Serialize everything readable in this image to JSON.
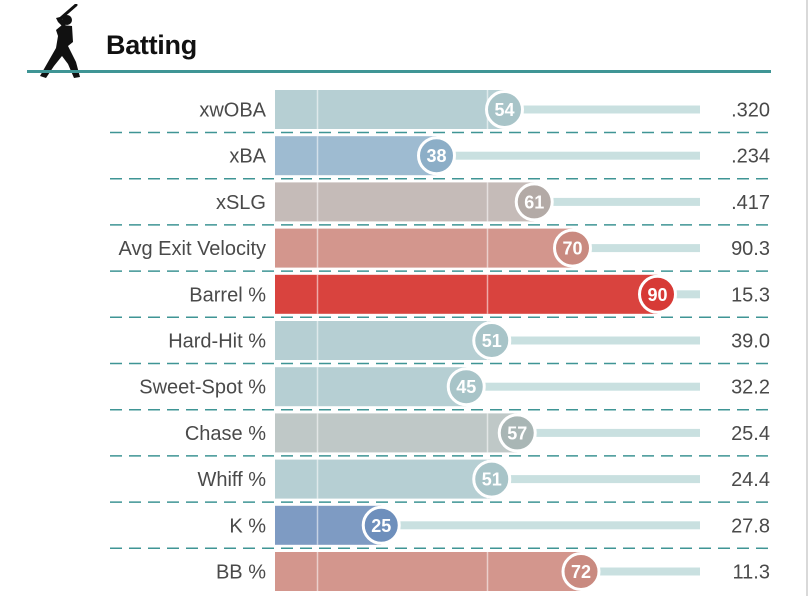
{
  "section": {
    "title": "Batting",
    "icon": "batter-silhouette-icon"
  },
  "colors": {
    "accent": "#3f9595",
    "track": "#c9e0e0",
    "dash": "#3f9595"
  },
  "chart_data": {
    "type": "bar",
    "orientation": "horizontal",
    "value_kind": "percentile",
    "xlim": [
      0,
      100
    ],
    "categories": [
      "xwOBA",
      "xBA",
      "xSLG",
      "Avg Exit Velocity",
      "Barrel %",
      "Hard-Hit %",
      "Sweet-Spot %",
      "Chase %",
      "Whiff %",
      "K %",
      "BB %"
    ],
    "percentiles": [
      54,
      38,
      61,
      70,
      90,
      51,
      45,
      57,
      51,
      25,
      72
    ],
    "stat_values": [
      ".320",
      ".234",
      ".417",
      "90.3",
      "15.3",
      "39.0",
      "32.2",
      "25.4",
      "24.4",
      "27.8",
      "11.3"
    ],
    "bar_colors": [
      "#b6cfd3",
      "#9ebbd1",
      "#c5bbb8",
      "#d3968d",
      "#d9433e",
      "#b6cfd3",
      "#b6cfd3",
      "#bfc8c7",
      "#b6cfd3",
      "#7e9bc3",
      "#d3968d"
    ],
    "circle_colors": [
      "#a8c4c8",
      "#8caec7",
      "#b3aaa6",
      "#c98a80",
      "#d73a36",
      "#a8c4c8",
      "#a8c4c8",
      "#a9b6b5",
      "#a8c4c8",
      "#6e8fbc",
      "#c98a80"
    ]
  }
}
